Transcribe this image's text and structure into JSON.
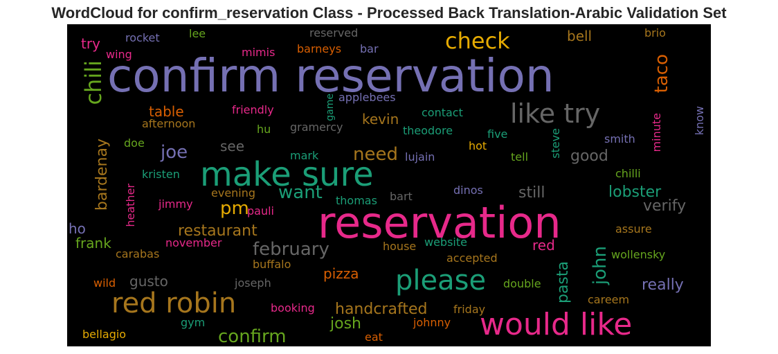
{
  "title": "WordCloud for confirm_reservation Class - Processed Back Translation-Arabic Validation Set",
  "colors": {
    "background": "#000000",
    "purple": "#7570b3",
    "green": "#1b9e77",
    "pink": "#e7298a",
    "olive": "#66a61e",
    "gold": "#e6ab02",
    "brown": "#a6761d",
    "orange": "#d95f02",
    "gray": "#666666"
  },
  "words": [
    {
      "text": "confirm reservation",
      "color": "#7570b3"
    },
    {
      "text": "reservation",
      "color": "#e7298a"
    },
    {
      "text": "make sure",
      "color": "#1b9e77"
    },
    {
      "text": "would like",
      "color": "#e7298a"
    },
    {
      "text": "red robin",
      "color": "#a6761d"
    },
    {
      "text": "please",
      "color": "#1b9e77"
    },
    {
      "text": "like try",
      "color": "#666666"
    },
    {
      "text": "check",
      "color": "#e6ab02"
    },
    {
      "text": "chili",
      "color": "#66a61e"
    },
    {
      "text": "taco",
      "color": "#d95f02"
    },
    {
      "text": "confirm",
      "color": "#66a61e"
    },
    {
      "text": "february",
      "color": "#666666"
    },
    {
      "text": "john",
      "color": "#1b9e77"
    },
    {
      "text": "pm",
      "color": "#e6ab02"
    },
    {
      "text": "joe",
      "color": "#7570b3"
    },
    {
      "text": "need",
      "color": "#a6761d"
    },
    {
      "text": "want",
      "color": "#1b9e77"
    },
    {
      "text": "handcrafted",
      "color": "#a6761d"
    },
    {
      "text": "restaurant",
      "color": "#a6761d"
    },
    {
      "text": "bardenay",
      "color": "#a6761d"
    },
    {
      "text": "pasta",
      "color": "#1b9e77"
    },
    {
      "text": "josh",
      "color": "#66a61e"
    },
    {
      "text": "lobster",
      "color": "#1b9e77"
    },
    {
      "text": "really",
      "color": "#7570b3"
    },
    {
      "text": "verify",
      "color": "#666666"
    },
    {
      "text": "still",
      "color": "#666666"
    },
    {
      "text": "good",
      "color": "#666666"
    },
    {
      "text": "gusto",
      "color": "#666666"
    },
    {
      "text": "pizza",
      "color": "#d95f02"
    },
    {
      "text": "table",
      "color": "#d95f02"
    },
    {
      "text": "kevin",
      "color": "#a6761d"
    },
    {
      "text": "frank",
      "color": "#66a61e"
    },
    {
      "text": "bell",
      "color": "#a6761d"
    },
    {
      "text": "try",
      "color": "#e7298a"
    },
    {
      "text": "see",
      "color": "#666666"
    },
    {
      "text": "red",
      "color": "#e7298a"
    },
    {
      "text": "ho",
      "color": "#7570b3"
    },
    {
      "text": "friendly",
      "color": "#e7298a"
    },
    {
      "text": "contact",
      "color": "#1b9e77"
    },
    {
      "text": "applebees",
      "color": "#7570b3"
    },
    {
      "text": "afternoon",
      "color": "#a6761d"
    },
    {
      "text": "gramercy",
      "color": "#666666"
    },
    {
      "text": "theodore",
      "color": "#1b9e77"
    },
    {
      "text": "five",
      "color": "#1b9e77"
    },
    {
      "text": "hu",
      "color": "#66a61e"
    },
    {
      "text": "doe",
      "color": "#66a61e"
    },
    {
      "text": "mark",
      "color": "#1b9e77"
    },
    {
      "text": "lujain",
      "color": "#7570b3"
    },
    {
      "text": "hot",
      "color": "#e6ab02"
    },
    {
      "text": "tell",
      "color": "#66a61e"
    },
    {
      "text": "steve",
      "color": "#1b9e77"
    },
    {
      "text": "smith",
      "color": "#7570b3"
    },
    {
      "text": "minute",
      "color": "#e7298a"
    },
    {
      "text": "know",
      "color": "#7570b3"
    },
    {
      "text": "kristen",
      "color": "#1b9e77"
    },
    {
      "text": "chilli",
      "color": "#66a61e"
    },
    {
      "text": "evening",
      "color": "#a6761d"
    },
    {
      "text": "dinos",
      "color": "#7570b3"
    },
    {
      "text": "bart",
      "color": "#666666"
    },
    {
      "text": "thomas",
      "color": "#1b9e77"
    },
    {
      "text": "jimmy",
      "color": "#e7298a"
    },
    {
      "text": "pauli",
      "color": "#e7298a"
    },
    {
      "text": "heather",
      "color": "#e7298a"
    },
    {
      "text": "assure",
      "color": "#a6761d"
    },
    {
      "text": "november",
      "color": "#e7298a"
    },
    {
      "text": "house",
      "color": "#a6761d"
    },
    {
      "text": "website",
      "color": "#1b9e77"
    },
    {
      "text": "carabas",
      "color": "#a6761d"
    },
    {
      "text": "wollensky",
      "color": "#66a61e"
    },
    {
      "text": "accepted",
      "color": "#a6761d"
    },
    {
      "text": "buffalo",
      "color": "#a6761d"
    },
    {
      "text": "wild",
      "color": "#d95f02"
    },
    {
      "text": "joseph",
      "color": "#666666"
    },
    {
      "text": "double",
      "color": "#66a61e"
    },
    {
      "text": "careem",
      "color": "#a6761d"
    },
    {
      "text": "booking",
      "color": "#e7298a"
    },
    {
      "text": "friday",
      "color": "#a6761d"
    },
    {
      "text": "gym",
      "color": "#1b9e77"
    },
    {
      "text": "johnny",
      "color": "#d95f02"
    },
    {
      "text": "bellagio",
      "color": "#e6ab02"
    },
    {
      "text": "eat",
      "color": "#d95f02"
    },
    {
      "text": "rocket",
      "color": "#7570b3"
    },
    {
      "text": "lee",
      "color": "#66a61e"
    },
    {
      "text": "reserved",
      "color": "#666666"
    },
    {
      "text": "brio",
      "color": "#a6761d"
    },
    {
      "text": "wing",
      "color": "#e7298a"
    },
    {
      "text": "mimis",
      "color": "#e7298a"
    },
    {
      "text": "barneys",
      "color": "#d95f02"
    },
    {
      "text": "bar",
      "color": "#7570b3"
    },
    {
      "text": "game",
      "color": "#1b9e77"
    }
  ]
}
